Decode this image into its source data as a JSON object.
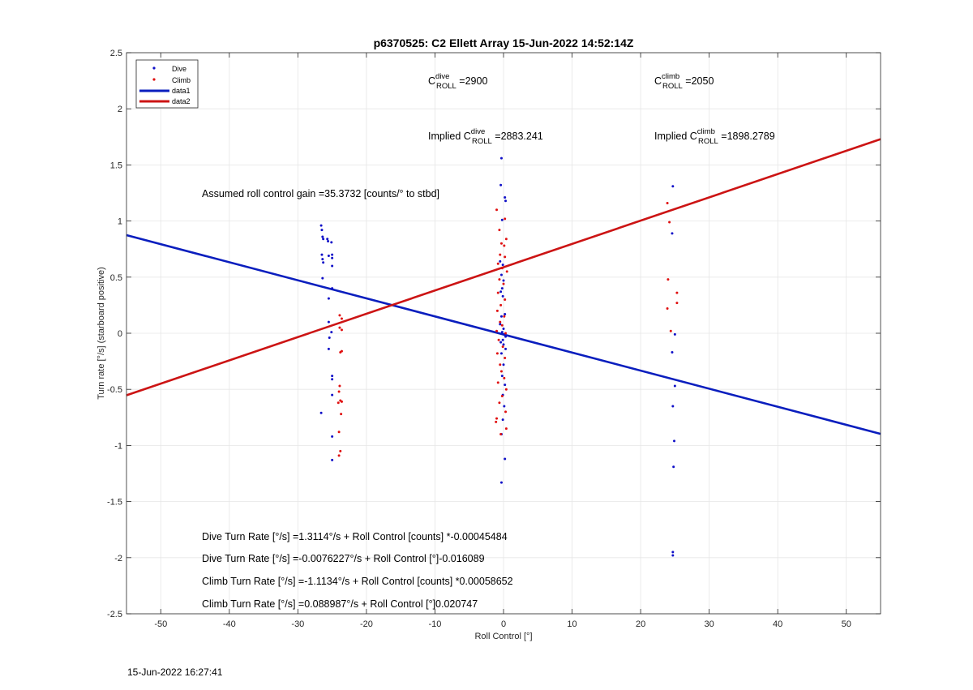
{
  "chart_data": {
    "type": "scatter",
    "title": "p6370525: C2 Ellett Array 15-Jun-2022 14:52:14Z",
    "xlabel": "Roll Control [°]",
    "ylabel": "Turn rate [°/s] (starboard positive)",
    "xlim": [
      -55,
      55
    ],
    "ylim": [
      -2.5,
      2.5
    ],
    "xticks": [
      -50,
      -40,
      -30,
      -20,
      -10,
      0,
      10,
      20,
      30,
      40,
      50
    ],
    "yticks": [
      -2.5,
      -2,
      -1.5,
      -1,
      -0.5,
      0,
      0.5,
      1,
      1.5,
      2,
      2.5
    ],
    "grid": true,
    "legend_position": "top-left",
    "colors": {
      "dive": "#1010c8",
      "climb": "#e01010",
      "data1": "#0a1ebe",
      "data2": "#cc1414"
    },
    "series": [
      {
        "name": "Dive",
        "style": "dots",
        "points": [
          [
            -26.6,
            0.96
          ],
          [
            -26.5,
            0.92
          ],
          [
            -26.4,
            0.86
          ],
          [
            -26.3,
            0.84
          ],
          [
            -26.5,
            0.7
          ],
          [
            -26.4,
            0.66
          ],
          [
            -26.3,
            0.63
          ],
          [
            -26.4,
            0.49
          ],
          [
            -26.6,
            -0.71
          ],
          [
            -25.7,
            0.84
          ],
          [
            -25.6,
            0.82
          ],
          [
            -25.5,
            0.69
          ],
          [
            -25.5,
            0.31
          ],
          [
            -25.5,
            0.1
          ],
          [
            -25.4,
            -0.04
          ],
          [
            -25.5,
            -0.14
          ],
          [
            -25.1,
            0.81
          ],
          [
            -25.0,
            0.7
          ],
          [
            -25.0,
            0.67
          ],
          [
            -25.0,
            0.6
          ],
          [
            -25.0,
            0.4
          ],
          [
            -25.1,
            0.01
          ],
          [
            -25.0,
            -0.38
          ],
          [
            -25.0,
            -0.41
          ],
          [
            -25.0,
            -0.55
          ],
          [
            -25.0,
            -0.92
          ],
          [
            -25.0,
            -1.13
          ],
          [
            -0.3,
            1.56
          ],
          [
            -0.4,
            1.32
          ],
          [
            0.2,
            1.21
          ],
          [
            0.3,
            1.18
          ],
          [
            -0.2,
            1.01
          ],
          [
            -0.5,
            0.64
          ],
          [
            -0.1,
            0.61
          ],
          [
            -0.3,
            0.52
          ],
          [
            0.0,
            0.47
          ],
          [
            -0.2,
            0.4
          ],
          [
            -0.4,
            0.37
          ],
          [
            -0.1,
            0.33
          ],
          [
            0.2,
            0.17
          ],
          [
            -0.3,
            0.15
          ],
          [
            -0.5,
            0.08
          ],
          [
            0.0,
            0.04
          ],
          [
            -0.2,
            0.01
          ],
          [
            0.1,
            -0.01
          ],
          [
            0.3,
            -0.03
          ],
          [
            -0.1,
            -0.06
          ],
          [
            -0.4,
            -0.08
          ],
          [
            0.0,
            -0.1
          ],
          [
            0.3,
            -0.14
          ],
          [
            -0.3,
            -0.18
          ],
          [
            0.0,
            -0.28
          ],
          [
            -0.2,
            -0.38
          ],
          [
            0.2,
            -0.46
          ],
          [
            -0.1,
            -0.55
          ],
          [
            0.1,
            -0.65
          ],
          [
            -0.1,
            -0.77
          ],
          [
            -0.3,
            -0.9
          ],
          [
            0.2,
            -1.12
          ],
          [
            -0.3,
            -1.33
          ],
          [
            24.7,
            1.31
          ],
          [
            24.6,
            0.89
          ],
          [
            25.0,
            -0.01
          ],
          [
            24.6,
            -0.17
          ],
          [
            25.0,
            -0.47
          ],
          [
            24.7,
            -0.65
          ],
          [
            24.9,
            -0.96
          ],
          [
            24.8,
            -1.19
          ],
          [
            24.7,
            -1.95
          ],
          [
            24.7,
            -1.98
          ]
        ]
      },
      {
        "name": "Climb",
        "style": "dots",
        "points": [
          [
            -23.9,
            0.16
          ],
          [
            -23.6,
            0.13
          ],
          [
            -23.6,
            0.03
          ],
          [
            -23.9,
            0.05
          ],
          [
            -23.6,
            -0.16
          ],
          [
            -23.8,
            -0.17
          ],
          [
            -23.9,
            -0.47
          ],
          [
            -24.0,
            -0.52
          ],
          [
            -23.8,
            -0.6
          ],
          [
            -24.1,
            -0.62
          ],
          [
            -23.6,
            -0.61
          ],
          [
            -23.7,
            -0.72
          ],
          [
            -24.0,
            -0.88
          ],
          [
            -23.8,
            -1.05
          ],
          [
            -24.0,
            -1.09
          ],
          [
            -1.0,
            1.1
          ],
          [
            0.2,
            1.02
          ],
          [
            -0.6,
            0.92
          ],
          [
            0.4,
            0.84
          ],
          [
            -0.3,
            0.8
          ],
          [
            0.1,
            0.78
          ],
          [
            -0.5,
            0.7
          ],
          [
            0.2,
            0.68
          ],
          [
            -0.8,
            0.62
          ],
          [
            -0.2,
            0.58
          ],
          [
            0.5,
            0.55
          ],
          [
            -0.6,
            0.48
          ],
          [
            0.0,
            0.44
          ],
          [
            -0.8,
            0.36
          ],
          [
            0.2,
            0.3
          ],
          [
            -0.4,
            0.25
          ],
          [
            -0.9,
            0.2
          ],
          [
            0.1,
            0.15
          ],
          [
            -0.5,
            0.1
          ],
          [
            -0.2,
            0.07
          ],
          [
            -1.0,
            0.02
          ],
          [
            0.3,
            0.0
          ],
          [
            -0.7,
            -0.06
          ],
          [
            -0.1,
            -0.12
          ],
          [
            -0.9,
            -0.18
          ],
          [
            0.2,
            -0.22
          ],
          [
            -0.5,
            -0.28
          ],
          [
            -0.3,
            -0.34
          ],
          [
            0.1,
            -0.4
          ],
          [
            -0.8,
            -0.44
          ],
          [
            0.4,
            -0.5
          ],
          [
            -0.2,
            -0.56
          ],
          [
            -0.6,
            -0.62
          ],
          [
            0.3,
            -0.7
          ],
          [
            -1.0,
            -0.76
          ],
          [
            -1.1,
            -0.79
          ],
          [
            0.4,
            -0.85
          ],
          [
            -0.4,
            -0.9
          ],
          [
            23.9,
            1.16
          ],
          [
            24.2,
            0.99
          ],
          [
            24.0,
            0.48
          ],
          [
            25.3,
            0.36
          ],
          [
            25.3,
            0.27
          ],
          [
            23.9,
            0.22
          ],
          [
            24.4,
            0.02
          ]
        ]
      },
      {
        "name": "data1",
        "style": "line",
        "x": [
          -55,
          55
        ],
        "y": [
          0.8742,
          -0.8965
        ]
      },
      {
        "name": "data2",
        "style": "line",
        "x": [
          -55,
          55
        ],
        "y": [
          -0.5526,
          1.7296
        ]
      }
    ],
    "annotations": {
      "c_dive_base": "C",
      "c_dive_sup": "dive",
      "c_dive_sub": "ROLL",
      "c_dive_value": " =2900",
      "c_climb_base": "C",
      "c_climb_sup": "climb",
      "c_climb_sub": "ROLL",
      "c_climb_value": " =2050",
      "implied_prefix": "Implied C",
      "implied_dive_value": " =2883.241",
      "implied_climb_value": " =1898.2789",
      "gain": "Assumed roll control gain =35.3732 [counts/° to stbd]",
      "eq1": "Dive Turn Rate [°/s] =1.3114°/s + Roll Control [counts] *-0.00045484",
      "eq2": "Dive Turn Rate [°/s] =-0.0076227°/s + Roll Control [°]-0.016089",
      "eq3": "Climb Turn Rate [°/s] =-1.1134°/s + Roll Control [counts] *0.00058652",
      "eq4": "Climb Turn Rate [°/s] =0.088987°/s + Roll Control [°]0.020747"
    }
  },
  "timestamp": "15-Jun-2022 16:27:41"
}
